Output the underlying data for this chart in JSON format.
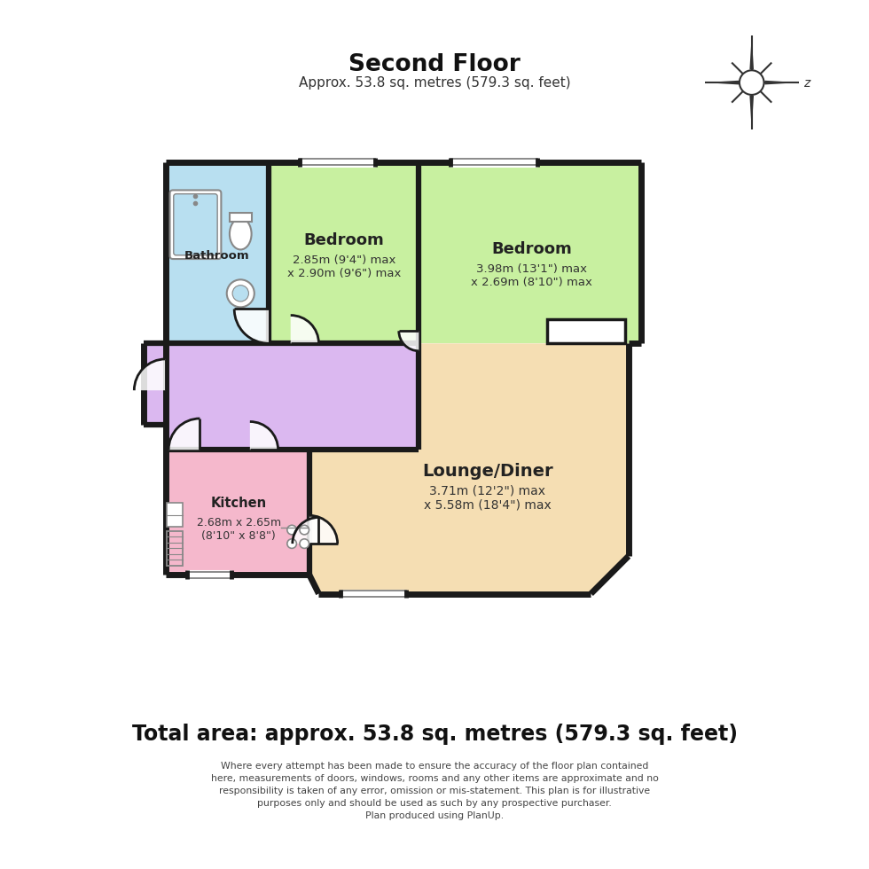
{
  "title": "Second Floor",
  "subtitle": "Approx. 53.8 sq. metres (579.3 sq. feet)",
  "total_area": "Total area: approx. 53.8 sq. metres (579.3 sq. feet)",
  "disclaimer": "Where every attempt has been made to ensure the accuracy of the floor plan contained\nhere, measurements of doors, windows, rooms and any other items are approximate and no\nresponsibility is taken of any error, omission or mis-statement. This plan is for illustrative\npurposes only and should be used as such by any prospective purchaser.\nPlan produced using PlanUp.",
  "bg_color": "#ffffff",
  "wall_color": "#1a1a1a",
  "colors": {
    "bathroom": "#b8dff0",
    "bedroom1": "#c8f0a0",
    "bedroom2": "#c8f0a0",
    "landing": "#dbb8f0",
    "kitchen": "#f5b8cc",
    "lounge": "#f5deb3"
  }
}
